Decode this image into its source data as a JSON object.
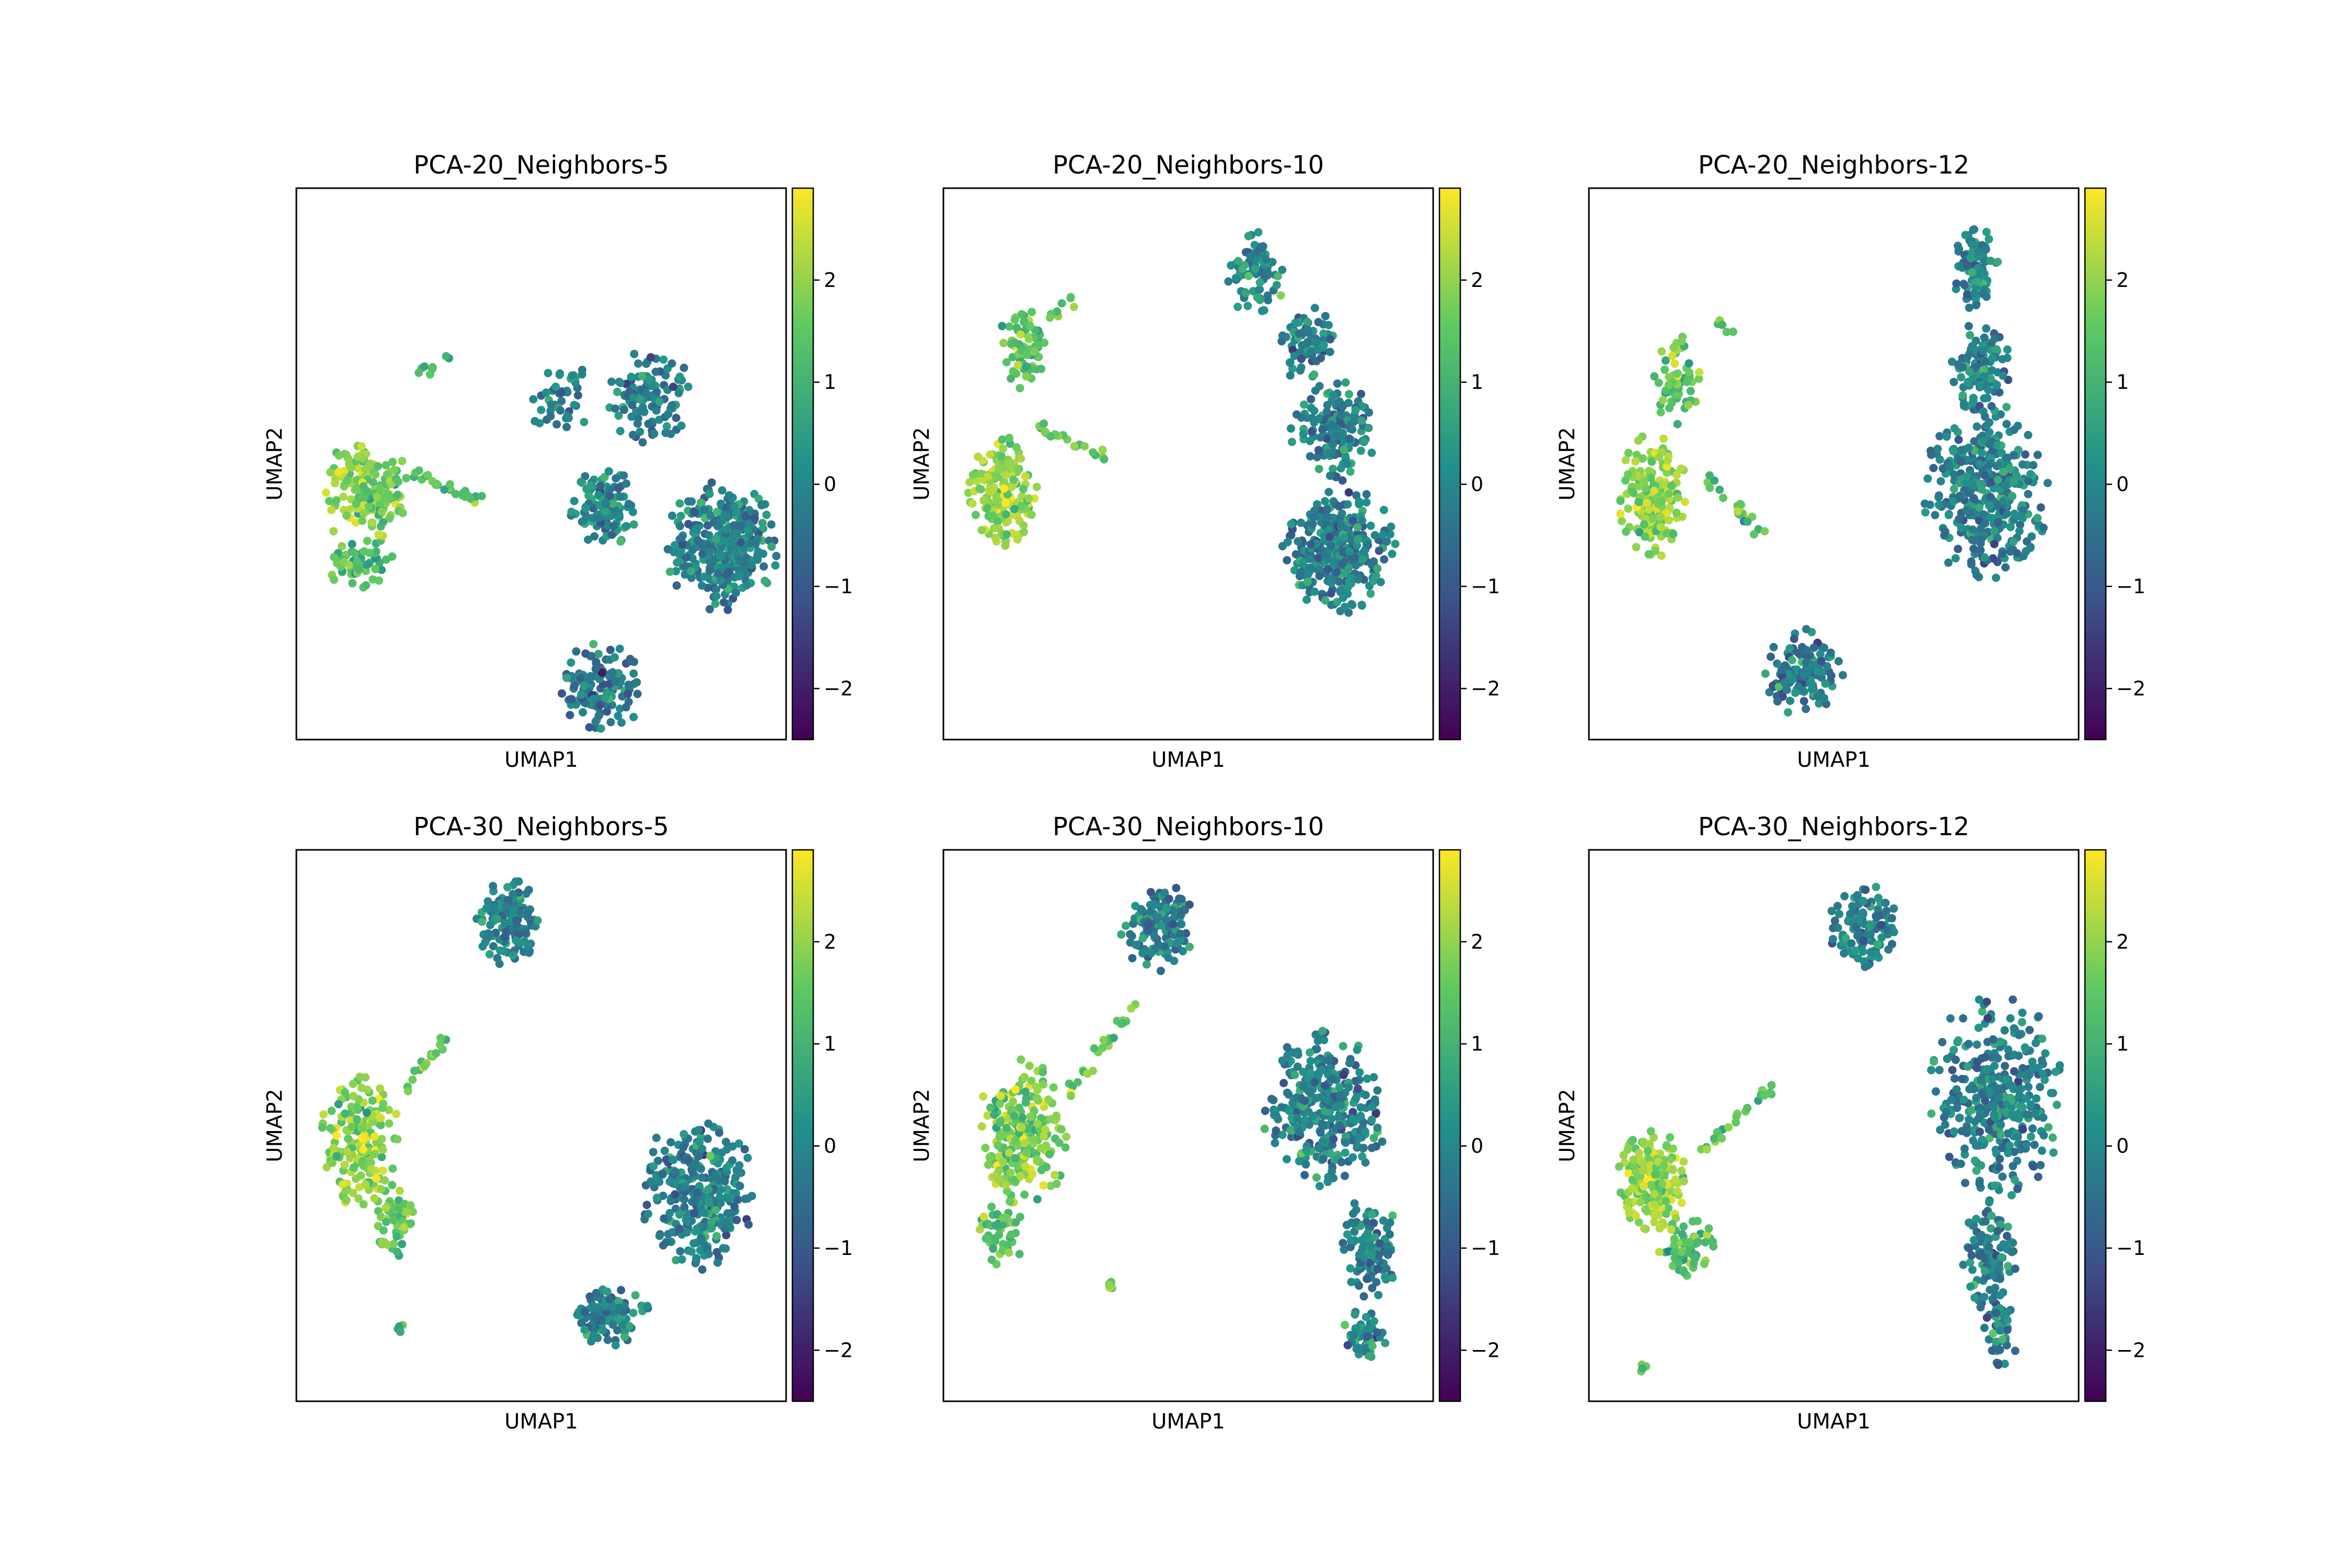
{
  "colormap": {
    "name": "viridis",
    "stops": [
      "#440154",
      "#3b528b",
      "#21918c",
      "#5ec962",
      "#fde725"
    ]
  },
  "chart_data": [
    {
      "type": "scatter",
      "title": "PCA-20_Neighbors-5",
      "xlabel": "UMAP1",
      "ylabel": "UMAP2",
      "colorbar": {
        "range": [
          -2.5,
          2.9
        ],
        "ticks": [
          -2,
          -1,
          0,
          1,
          2
        ],
        "tick_labels": [
          "−2",
          "−1",
          "0",
          "1",
          "2"
        ]
      },
      "clusters": [
        {
          "cx": 0.54,
          "cy": 0.62,
          "rx": 0.06,
          "ry": 0.06,
          "n": 45,
          "mean": -0.1,
          "sd": 0.55,
          "spread": "gauss"
        },
        {
          "cx": 0.72,
          "cy": 0.62,
          "rx": 0.08,
          "ry": 0.08,
          "n": 110,
          "mean": -0.2,
          "sd": 0.5
        },
        {
          "cx": 0.63,
          "cy": 0.42,
          "rx": 0.06,
          "ry": 0.06,
          "n": 120,
          "mean": 0.0,
          "sd": 0.5
        },
        {
          "cx": 0.87,
          "cy": 0.35,
          "rx": 0.1,
          "ry": 0.1,
          "n": 330,
          "mean": -0.1,
          "sd": 0.5
        },
        {
          "cx": 0.13,
          "cy": 0.45,
          "rx": 0.07,
          "ry": 0.09,
          "n": 95,
          "mean": 2.0,
          "sd": 0.45
        },
        {
          "cx": 0.13,
          "cy": 0.32,
          "rx": 0.06,
          "ry": 0.04,
          "n": 55,
          "mean": 1.4,
          "sd": 0.5
        },
        {
          "cx": 0.18,
          "cy": 0.44,
          "rx": 0.05,
          "ry": 0.07,
          "n": 70,
          "mean": 1.7,
          "sd": 0.5
        },
        {
          "cx": 0.62,
          "cy": 0.09,
          "rx": 0.07,
          "ry": 0.08,
          "n": 140,
          "mean": -0.3,
          "sd": 0.6
        }
      ],
      "arms": [
        {
          "x0": 0.25,
          "y0": 0.48,
          "x1": 0.38,
          "y1": 0.43,
          "n": 25,
          "mean": 1.5,
          "sd": 0.5
        },
        {
          "x0": 0.25,
          "y0": 0.66,
          "x1": 0.31,
          "y1": 0.69,
          "n": 8,
          "mean": 1.3,
          "sd": 0.5
        }
      ]
    },
    {
      "type": "scatter",
      "title": "PCA-20_Neighbors-10",
      "xlabel": "UMAP1",
      "ylabel": "UMAP2",
      "colorbar": {
        "range": [
          -2.5,
          2.9
        ],
        "ticks": [
          -2,
          -1,
          0,
          1,
          2
        ],
        "tick_labels": [
          "−2",
          "−1",
          "0",
          "1",
          "2"
        ]
      },
      "clusters": [
        {
          "cx": 0.64,
          "cy": 0.84,
          "rx": 0.05,
          "ry": 0.07,
          "n": 80,
          "mean": 0.0,
          "sd": 0.5
        },
        {
          "cx": 0.74,
          "cy": 0.72,
          "rx": 0.05,
          "ry": 0.06,
          "n": 80,
          "mean": -0.1,
          "sd": 0.5
        },
        {
          "cx": 0.8,
          "cy": 0.56,
          "rx": 0.08,
          "ry": 0.08,
          "n": 150,
          "mean": -0.1,
          "sd": 0.5
        },
        {
          "cx": 0.81,
          "cy": 0.34,
          "rx": 0.1,
          "ry": 0.1,
          "n": 330,
          "mean": -0.2,
          "sd": 0.5
        },
        {
          "cx": 0.12,
          "cy": 0.45,
          "rx": 0.06,
          "ry": 0.09,
          "n": 190,
          "mean": 2.0,
          "sd": 0.45
        },
        {
          "cx": 0.16,
          "cy": 0.71,
          "rx": 0.04,
          "ry": 0.07,
          "n": 75,
          "mean": 1.4,
          "sd": 0.5
        }
      ],
      "arms": [
        {
          "x0": 0.2,
          "y0": 0.56,
          "x1": 0.34,
          "y1": 0.51,
          "n": 20,
          "mean": 1.3,
          "sd": 0.5
        },
        {
          "x0": 0.22,
          "y0": 0.76,
          "x1": 0.28,
          "y1": 0.82,
          "n": 8,
          "mean": 1.6,
          "sd": 0.5
        }
      ]
    },
    {
      "type": "scatter",
      "title": "PCA-20_Neighbors-12",
      "xlabel": "UMAP1",
      "ylabel": "UMAP2",
      "colorbar": {
        "range": [
          -2.5,
          2.9
        ],
        "ticks": [
          -2,
          -1,
          0,
          1,
          2
        ],
        "tick_labels": [
          "−2",
          "−1",
          "0",
          "1",
          "2"
        ]
      },
      "clusters": [
        {
          "cx": 0.79,
          "cy": 0.85,
          "rx": 0.04,
          "ry": 0.07,
          "n": 90,
          "mean": 0.0,
          "sd": 0.5
        },
        {
          "cx": 0.8,
          "cy": 0.68,
          "rx": 0.05,
          "ry": 0.08,
          "n": 110,
          "mean": -0.1,
          "sd": 0.5
        },
        {
          "cx": 0.81,
          "cy": 0.45,
          "rx": 0.11,
          "ry": 0.14,
          "n": 380,
          "mean": -0.1,
          "sd": 0.5
        },
        {
          "cx": 0.13,
          "cy": 0.44,
          "rx": 0.06,
          "ry": 0.1,
          "n": 190,
          "mean": 2.0,
          "sd": 0.45
        },
        {
          "cx": 0.18,
          "cy": 0.65,
          "rx": 0.04,
          "ry": 0.07,
          "n": 60,
          "mean": 1.5,
          "sd": 0.5
        },
        {
          "cx": 0.44,
          "cy": 0.12,
          "rx": 0.07,
          "ry": 0.07,
          "n": 140,
          "mean": -0.2,
          "sd": 0.55
        }
      ],
      "arms": [
        {
          "x0": 0.24,
          "y0": 0.47,
          "x1": 0.36,
          "y1": 0.37,
          "n": 20,
          "mean": 1.4,
          "sd": 0.5
        },
        {
          "x0": 0.26,
          "y0": 0.75,
          "x1": 0.32,
          "y1": 0.72,
          "n": 6,
          "mean": 1.7,
          "sd": 0.5
        }
      ]
    },
    {
      "type": "scatter",
      "title": "PCA-30_Neighbors-5",
      "xlabel": "UMAP1",
      "ylabel": "UMAP2",
      "colorbar": {
        "range": [
          -2.5,
          2.9
        ],
        "ticks": [
          -2,
          -1,
          0,
          1,
          2
        ],
        "tick_labels": [
          "−2",
          "−1",
          "0",
          "1",
          "2"
        ]
      },
      "clusters": [
        {
          "cx": 0.43,
          "cy": 0.87,
          "rx": 0.06,
          "ry": 0.07,
          "n": 130,
          "mean": -0.1,
          "sd": 0.5
        },
        {
          "cx": 0.13,
          "cy": 0.47,
          "rx": 0.07,
          "ry": 0.11,
          "n": 180,
          "mean": 1.9,
          "sd": 0.5
        },
        {
          "cx": 0.2,
          "cy": 0.33,
          "rx": 0.04,
          "ry": 0.06,
          "n": 60,
          "mean": 1.5,
          "sd": 0.5
        },
        {
          "cx": 0.82,
          "cy": 0.38,
          "rx": 0.1,
          "ry": 0.12,
          "n": 320,
          "mean": -0.1,
          "sd": 0.5
        },
        {
          "cx": 0.64,
          "cy": 0.16,
          "rx": 0.07,
          "ry": 0.05,
          "n": 110,
          "mean": -0.1,
          "sd": 0.5
        },
        {
          "cx": 0.21,
          "cy": 0.13,
          "rx": 0.01,
          "ry": 0.01,
          "n": 6,
          "mean": 1.5,
          "sd": 0.6
        }
      ],
      "arms": [
        {
          "x0": 0.22,
          "y0": 0.57,
          "x1": 0.31,
          "y1": 0.66,
          "n": 18,
          "mean": 1.6,
          "sd": 0.5
        }
      ]
    },
    {
      "type": "scatter",
      "title": "PCA-30_Neighbors-10",
      "xlabel": "UMAP1",
      "ylabel": "UMAP2",
      "colorbar": {
        "range": [
          -2.5,
          2.9
        ],
        "ticks": [
          -2,
          -1,
          0,
          1,
          2
        ],
        "tick_labels": [
          "−2",
          "−1",
          "0",
          "1",
          "2"
        ]
      },
      "clusters": [
        {
          "cx": 0.44,
          "cy": 0.86,
          "rx": 0.07,
          "ry": 0.07,
          "n": 130,
          "mean": -0.1,
          "sd": 0.55
        },
        {
          "cx": 0.16,
          "cy": 0.48,
          "rx": 0.08,
          "ry": 0.12,
          "n": 230,
          "mean": 1.8,
          "sd": 0.5
        },
        {
          "cx": 0.12,
          "cy": 0.3,
          "rx": 0.04,
          "ry": 0.06,
          "n": 50,
          "mean": 1.4,
          "sd": 0.5
        },
        {
          "cx": 0.78,
          "cy": 0.53,
          "rx": 0.11,
          "ry": 0.12,
          "n": 330,
          "mean": -0.1,
          "sd": 0.5
        },
        {
          "cx": 0.87,
          "cy": 0.28,
          "rx": 0.05,
          "ry": 0.08,
          "n": 110,
          "mean": -0.2,
          "sd": 0.55
        },
        {
          "cx": 0.86,
          "cy": 0.12,
          "rx": 0.04,
          "ry": 0.04,
          "n": 55,
          "mean": 0.0,
          "sd": 0.6
        },
        {
          "cx": 0.34,
          "cy": 0.21,
          "rx": 0.01,
          "ry": 0.01,
          "n": 6,
          "mean": 1.6,
          "sd": 0.5
        }
      ],
      "arms": [
        {
          "x0": 0.25,
          "y0": 0.55,
          "x1": 0.39,
          "y1": 0.72,
          "n": 25,
          "mean": 1.5,
          "sd": 0.5
        }
      ]
    },
    {
      "type": "scatter",
      "title": "PCA-30_Neighbors-12",
      "xlabel": "UMAP1",
      "ylabel": "UMAP2",
      "colorbar": {
        "range": [
          -2.5,
          2.9
        ],
        "ticks": [
          -2,
          -1,
          0,
          1,
          2
        ],
        "tick_labels": [
          "−2",
          "−1",
          "0",
          "1",
          "2"
        ]
      },
      "clusters": [
        {
          "cx": 0.56,
          "cy": 0.86,
          "rx": 0.06,
          "ry": 0.07,
          "n": 120,
          "mean": -0.1,
          "sd": 0.5
        },
        {
          "cx": 0.83,
          "cy": 0.55,
          "rx": 0.12,
          "ry": 0.16,
          "n": 360,
          "mean": -0.2,
          "sd": 0.5
        },
        {
          "cx": 0.82,
          "cy": 0.26,
          "rx": 0.05,
          "ry": 0.09,
          "n": 110,
          "mean": -0.1,
          "sd": 0.5
        },
        {
          "cx": 0.84,
          "cy": 0.12,
          "rx": 0.03,
          "ry": 0.05,
          "n": 45,
          "mean": 0.0,
          "sd": 0.55
        },
        {
          "cx": 0.13,
          "cy": 0.4,
          "rx": 0.06,
          "ry": 0.08,
          "n": 190,
          "mean": 2.0,
          "sd": 0.45
        },
        {
          "cx": 0.2,
          "cy": 0.28,
          "rx": 0.05,
          "ry": 0.05,
          "n": 60,
          "mean": 1.4,
          "sd": 0.5
        },
        {
          "cx": 0.11,
          "cy": 0.06,
          "rx": 0.01,
          "ry": 0.01,
          "n": 5,
          "mean": 1.0,
          "sd": 0.6
        }
      ],
      "arms": [
        {
          "x0": 0.22,
          "y0": 0.45,
          "x1": 0.38,
          "y1": 0.57,
          "n": 22,
          "mean": 1.4,
          "sd": 0.5
        }
      ]
    }
  ]
}
